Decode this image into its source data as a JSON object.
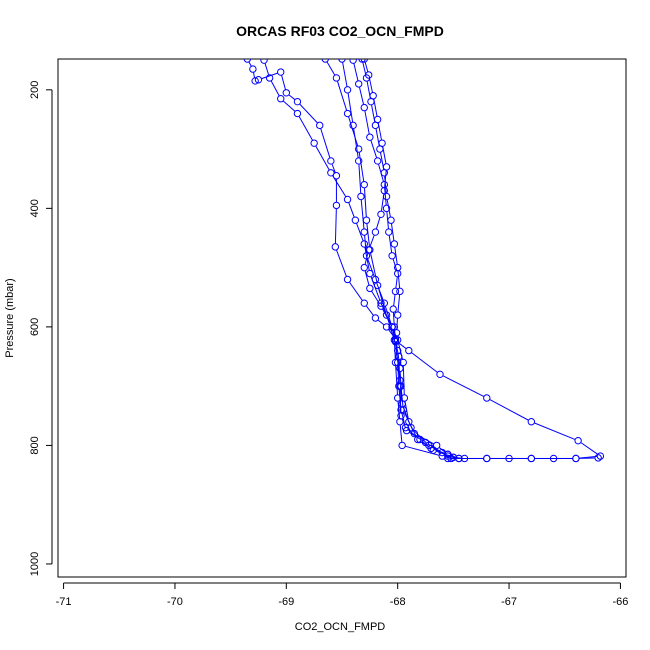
{
  "chart_data": {
    "type": "line",
    "title": "ORCAS RF03 CO2_OCN_FMPD",
    "xlabel": "CO2_OCN_FMPD",
    "ylabel": "Pressure (mbar)",
    "xlim": [
      -71.05,
      -65.95
    ],
    "ylim": [
      1022,
      148
    ],
    "y_reversed": true,
    "x_ticks": [
      -71,
      -70,
      -69,
      -68,
      -67,
      -66
    ],
    "y_ticks": [
      200,
      400,
      600,
      800,
      1000
    ],
    "marker": "open-circle",
    "series_color": "#0000ff",
    "series": [
      {
        "points": [
          [
            -69.35,
            148
          ],
          [
            -69.3,
            165
          ],
          [
            -69.28,
            185
          ],
          [
            -69.25,
            183
          ],
          [
            -69.05,
            170
          ],
          [
            -69.0,
            205
          ],
          [
            -68.9,
            220
          ],
          [
            -68.7,
            260
          ],
          [
            -68.6,
            320
          ],
          [
            -68.55,
            345
          ],
          [
            -68.55,
            395
          ],
          [
            -68.56,
            465
          ],
          [
            -68.45,
            520
          ],
          [
            -68.3,
            560
          ],
          [
            -68.2,
            585
          ],
          [
            -68.1,
            600
          ],
          [
            -68.02,
            620
          ],
          [
            -68.0,
            640
          ],
          [
            -67.98,
            670
          ],
          [
            -67.97,
            700
          ],
          [
            -67.95,
            740
          ],
          [
            -67.85,
            780
          ],
          [
            -67.65,
            800
          ],
          [
            -67.55,
            815
          ],
          [
            -67.5,
            820
          ]
        ]
      },
      {
        "points": [
          [
            -69.2,
            150
          ],
          [
            -69.15,
            180
          ],
          [
            -69.05,
            215
          ],
          [
            -68.9,
            240
          ],
          [
            -68.75,
            290
          ],
          [
            -68.6,
            340
          ],
          [
            -68.45,
            385
          ],
          [
            -68.38,
            420
          ],
          [
            -68.3,
            460
          ],
          [
            -68.25,
            510
          ],
          [
            -68.15,
            560
          ],
          [
            -68.05,
            600
          ],
          [
            -68.0,
            622
          ],
          [
            -67.95,
            660
          ],
          [
            -67.94,
            720
          ],
          [
            -67.9,
            760
          ],
          [
            -67.82,
            790
          ],
          [
            -67.7,
            805
          ],
          [
            -67.55,
            815
          ],
          [
            -67.45,
            822
          ]
        ]
      },
      {
        "points": [
          [
            -68.65,
            148
          ],
          [
            -68.55,
            180
          ],
          [
            -68.45,
            240
          ],
          [
            -68.35,
            300
          ],
          [
            -68.3,
            360
          ],
          [
            -68.28,
            420
          ],
          [
            -68.25,
            470
          ],
          [
            -68.18,
            530
          ],
          [
            -68.1,
            580
          ],
          [
            -68.03,
            622
          ],
          [
            -68.02,
            660
          ],
          [
            -68.0,
            720
          ],
          [
            -67.98,
            760
          ],
          [
            -67.96,
            800
          ],
          [
            -67.6,
            818
          ],
          [
            -67.4,
            822
          ],
          [
            -67.2,
            822
          ],
          [
            -67.0,
            822
          ],
          [
            -66.8,
            822
          ],
          [
            -66.6,
            822
          ],
          [
            -66.4,
            822
          ],
          [
            -66.2,
            821
          ]
        ]
      },
      {
        "points": [
          [
            -68.5,
            148
          ],
          [
            -68.45,
            200
          ],
          [
            -68.4,
            260
          ],
          [
            -68.35,
            320
          ],
          [
            -68.33,
            380
          ],
          [
            -68.3,
            440
          ],
          [
            -68.28,
            480
          ],
          [
            -68.2,
            520
          ],
          [
            -68.12,
            560
          ],
          [
            -68.05,
            600
          ],
          [
            -68.02,
            623
          ],
          [
            -67.9,
            640
          ],
          [
            -67.62,
            680
          ],
          [
            -67.2,
            720
          ],
          [
            -66.8,
            760
          ],
          [
            -66.38,
            792
          ],
          [
            -66.18,
            818
          ],
          [
            -66.4,
            822
          ],
          [
            -66.8,
            822
          ],
          [
            -67.2,
            822
          ],
          [
            -67.55,
            822
          ]
        ]
      },
      {
        "points": [
          [
            -68.4,
            150
          ],
          [
            -68.35,
            190
          ],
          [
            -68.3,
            230
          ],
          [
            -68.25,
            280
          ],
          [
            -68.18,
            320
          ],
          [
            -68.12,
            360
          ],
          [
            -68.1,
            400
          ],
          [
            -68.08,
            440
          ],
          [
            -68.05,
            480
          ],
          [
            -68.0,
            510
          ],
          [
            -68.02,
            540
          ],
          [
            -68.04,
            570
          ],
          [
            -68.03,
            600
          ],
          [
            -68.02,
            624
          ],
          [
            -67.99,
            650
          ],
          [
            -67.98,
            700
          ],
          [
            -67.97,
            750
          ],
          [
            -67.92,
            775
          ],
          [
            -67.75,
            795
          ],
          [
            -67.6,
            812
          ],
          [
            -67.52,
            822
          ]
        ]
      },
      {
        "points": [
          [
            -68.32,
            148
          ],
          [
            -68.28,
            180
          ],
          [
            -68.24,
            220
          ],
          [
            -68.2,
            260
          ],
          [
            -68.16,
            300
          ],
          [
            -68.12,
            340
          ],
          [
            -68.1,
            380
          ],
          [
            -68.06,
            420
          ],
          [
            -68.03,
            460
          ],
          [
            -68.0,
            500
          ],
          [
            -67.98,
            540
          ],
          [
            -68.0,
            580
          ],
          [
            -68.01,
            610
          ],
          [
            -68.02,
            624
          ],
          [
            -68.0,
            660
          ],
          [
            -67.99,
            700
          ],
          [
            -67.97,
            740
          ],
          [
            -67.93,
            770
          ],
          [
            -67.8,
            790
          ],
          [
            -67.68,
            808
          ],
          [
            -67.5,
            820
          ]
        ]
      },
      {
        "points": [
          [
            -68.3,
            148
          ],
          [
            -68.26,
            175
          ],
          [
            -68.22,
            210
          ],
          [
            -68.18,
            250
          ],
          [
            -68.14,
            290
          ],
          [
            -68.1,
            330
          ],
          [
            -68.12,
            370
          ],
          [
            -68.15,
            410
          ],
          [
            -68.2,
            440
          ],
          [
            -68.26,
            470
          ],
          [
            -68.3,
            500
          ],
          [
            -68.25,
            535
          ],
          [
            -68.15,
            565
          ],
          [
            -68.05,
            600
          ],
          [
            -68.02,
            625
          ],
          [
            -67.98,
            690
          ],
          [
            -67.96,
            730
          ],
          [
            -67.88,
            770
          ],
          [
            -67.72,
            800
          ],
          [
            -67.55,
            818
          ],
          [
            -67.45,
            822
          ]
        ]
      }
    ]
  }
}
